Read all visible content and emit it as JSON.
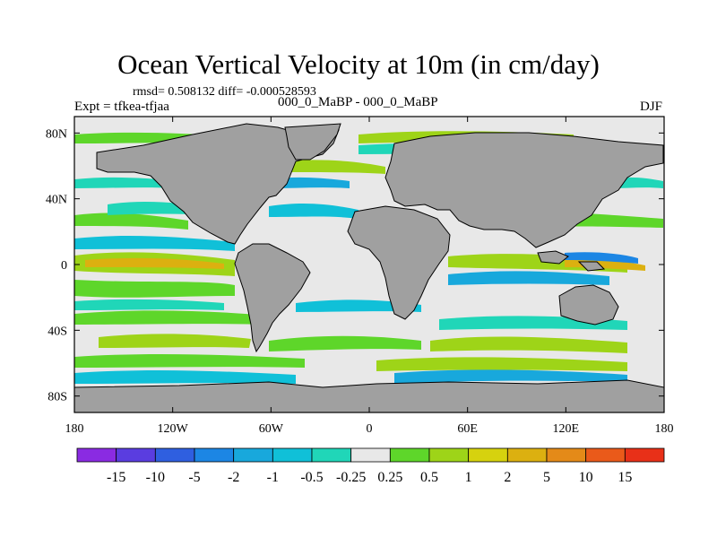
{
  "title": "Ocean Vertical Velocity at 10m (in cm/day)",
  "rmsd_line": "rmsd= 0.508132 diff= -0.000528593",
  "experiment": "Expt = tfkea-tfjaa",
  "experiment_periods": "000_0_MaBP - 000_0_MaBP",
  "season": "DJF",
  "map": {
    "projection": "cylindrical-equidistant",
    "lon_range": [
      -180,
      180
    ],
    "lat_range": [
      -90,
      90
    ],
    "land_color": "#a0a0a0",
    "ocean_background_color": "#e8e8e8",
    "x_tick_labels": [
      "180",
      "120W",
      "60W",
      "0",
      "60E",
      "120E",
      "180"
    ],
    "y_tick_labels": [
      "80N",
      "40N",
      "0",
      "40S",
      "80S"
    ]
  },
  "colorbar": {
    "labels": [
      "-15",
      "-10",
      "-5",
      "-2",
      "-1",
      "-0.5",
      "-0.25",
      "0.25",
      "0.5",
      "1",
      "2",
      "5",
      "10",
      "15"
    ],
    "colors": [
      "#8a2be2",
      "#5a3de0",
      "#2f5fe0",
      "#1c86e4",
      "#18a8dc",
      "#10c0d8",
      "#20d6b8",
      "#e8e8e8",
      "#5ed62a",
      "#9ed418",
      "#d6d20e",
      "#dcb010",
      "#e48a18",
      "#ea5a1a",
      "#e83018"
    ]
  }
}
